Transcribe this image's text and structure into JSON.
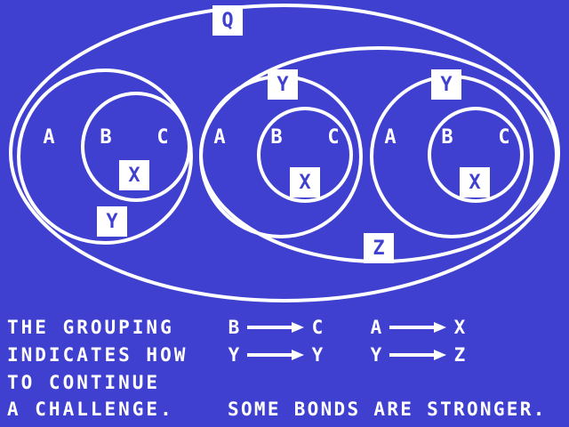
{
  "diagram": {
    "q_label": "Q",
    "z_label": "Z",
    "groups": [
      {
        "outer_left": "A",
        "inner_left": "B",
        "inner_right": "C",
        "inner_label": "X",
        "outer_label": "Y"
      },
      {
        "outer_left": "A",
        "inner_left": "B",
        "inner_right": "C",
        "inner_label": "X",
        "outer_label": "Y"
      },
      {
        "outer_left": "A",
        "inner_left": "B",
        "inner_right": "C",
        "inner_label": "X",
        "outer_label": "Y"
      }
    ]
  },
  "text": {
    "lines": [
      "THE GROUPING",
      "INDICATES HOW",
      "TO CONTINUE",
      "A CHALLENGE."
    ],
    "footer": "SOME BONDS ARE STRONGER."
  },
  "rules": [
    {
      "from": "B",
      "to": "C"
    },
    {
      "from": "A",
      "to": "X"
    },
    {
      "from": "Y",
      "to": "Y"
    },
    {
      "from": "Y",
      "to": "Z"
    }
  ],
  "colors": {
    "background": "#4040d0",
    "foreground": "#ffffff"
  }
}
